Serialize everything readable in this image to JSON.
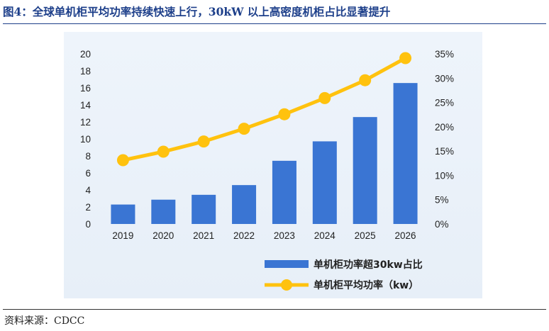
{
  "figure": {
    "title": "图4：全球单机柜平均功率持续快速上行，30kW 以上高密度机柜占比显著提升",
    "source": "资料来源：CDCC"
  },
  "colors": {
    "bar": "#3a75d3",
    "line": "#ffc20e",
    "title": "#1d3f8a",
    "panel_bg": "#eaf1f9"
  },
  "chart_data": {
    "type": "bar",
    "categories": [
      "2019",
      "2020",
      "2021",
      "2022",
      "2023",
      "2024",
      "2025",
      "2026"
    ],
    "series": [
      {
        "name": "单机柜功率超30kw占比",
        "type": "bar",
        "axis": "right",
        "values": [
          4.0,
          5.0,
          6.0,
          8.0,
          13.0,
          17.0,
          22.0,
          29.0
        ]
      },
      {
        "name": "单机柜平均功率（kw）",
        "type": "line",
        "axis": "left",
        "values": [
          7.5,
          8.5,
          9.7,
          11.2,
          12.9,
          14.8,
          16.9,
          19.5
        ]
      }
    ],
    "y_left": {
      "min": 0,
      "max": 20,
      "ticks": [
        "0",
        "2",
        "4",
        "6",
        "8",
        "10",
        "12",
        "14",
        "16",
        "18",
        "20"
      ]
    },
    "y_right": {
      "min": 0,
      "max": 35,
      "ticks": [
        "0%",
        "5%",
        "10%",
        "15%",
        "20%",
        "25%",
        "30%",
        "35%"
      ]
    },
    "grid": false,
    "legend_position": "bottom-right"
  }
}
